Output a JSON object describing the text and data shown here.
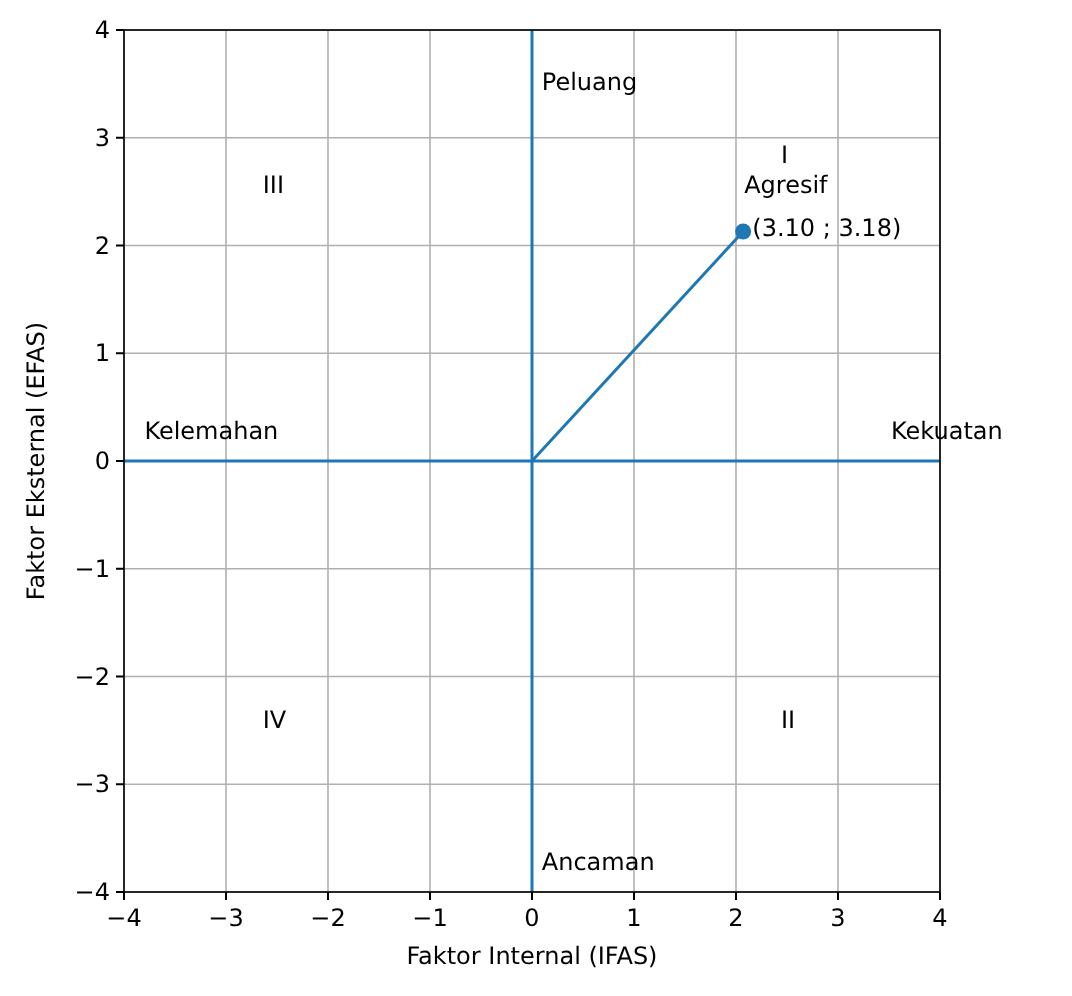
{
  "chart_data": {
    "type": "line",
    "xlabel": "Faktor Internal (IFAS)",
    "ylabel": "Faktor Eksternal (EFAS)",
    "xlim": [
      -4,
      4
    ],
    "ylim": [
      -4,
      4
    ],
    "xticks": [
      {
        "value": -4,
        "label": "−4"
      },
      {
        "value": -3,
        "label": "−3"
      },
      {
        "value": -2,
        "label": "−2"
      },
      {
        "value": -1,
        "label": "−1"
      },
      0,
      1,
      2,
      3,
      4
    ],
    "yticks": [
      {
        "value": -4,
        "label": "−4"
      },
      {
        "value": -3,
        "label": "−3"
      },
      {
        "value": -2,
        "label": "−2"
      },
      {
        "value": -1,
        "label": "−1"
      },
      0,
      1,
      2,
      3,
      4
    ],
    "grid": true,
    "series": [
      {
        "color": "#1f77b4",
        "x": [
          -4,
          4
        ],
        "values": [
          0,
          0
        ],
        "marker": "none"
      },
      {
        "color": "#1f77b4",
        "x": [
          0,
          0
        ],
        "values": [
          -4,
          4
        ],
        "marker": "none"
      },
      {
        "color": "#1f77b4",
        "x": [
          0,
          2.07
        ],
        "values": [
          0,
          2.13
        ],
        "marker": "none"
      },
      {
        "type": "scatter",
        "color": "#1f77b4",
        "x": [
          2.07
        ],
        "values": [
          2.13
        ],
        "marker": "circle"
      }
    ],
    "annotations": [
      "Peluang",
      "I",
      "Agresif",
      "(3.10 ; 3.18)",
      "III",
      "Kelemahan",
      "Kekuatan",
      "IV",
      "II",
      "Ancaman"
    ]
  }
}
